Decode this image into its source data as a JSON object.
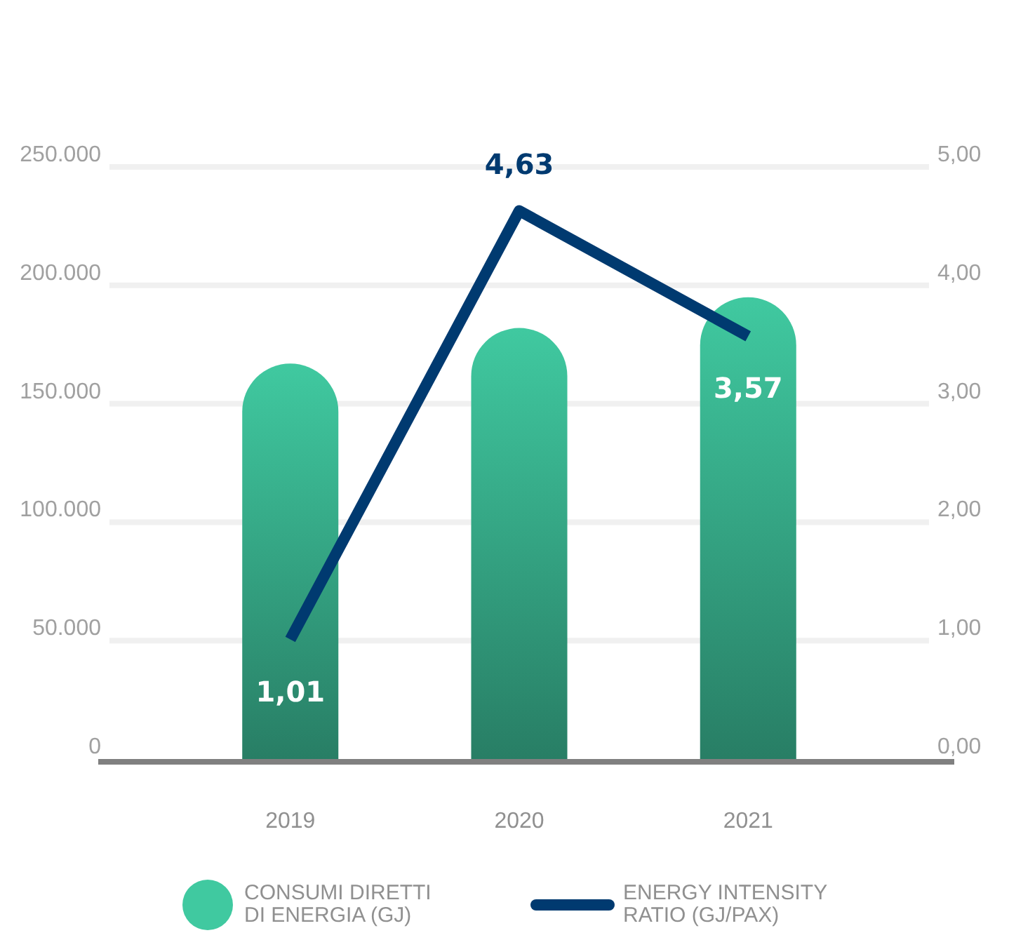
{
  "chart_data": {
    "type": "bar",
    "categories": [
      "2019",
      "2020",
      "2021"
    ],
    "series": [
      {
        "name": "CONSUMI DIRETTI DI ENERGIA (GJ)",
        "color": "#40c9a0",
        "values": [
          167000,
          182000,
          195000
        ]
      },
      {
        "name": "ENERGY INTENSITY RATIO (GJ/PAX)",
        "type": "line",
        "axis": "y2",
        "color": "#003a70",
        "values": [
          1.01,
          4.63,
          3.57
        ],
        "value_labels": [
          "1,01",
          "4,63",
          "3,57"
        ]
      }
    ],
    "ylim": [
      0,
      250000
    ],
    "yticks": [
      {
        "value": 0,
        "label": "0"
      },
      {
        "value": 50000,
        "label": "50.000"
      },
      {
        "value": 100000,
        "label": "100.000"
      },
      {
        "value": 150000,
        "label": "150.000"
      },
      {
        "value": 200000,
        "label": "200.000"
      },
      {
        "value": 250000,
        "label": "250.000"
      }
    ],
    "y2lim": [
      0,
      5
    ],
    "y2ticks": [
      {
        "value": 0,
        "label": "0,00"
      },
      {
        "value": 1,
        "label": "1,00"
      },
      {
        "value": 2,
        "label": "2,00"
      },
      {
        "value": 3,
        "label": "3,00"
      },
      {
        "value": 4,
        "label": "4,00"
      },
      {
        "value": 5,
        "label": "5,00"
      }
    ],
    "grid": "y",
    "legend": "bottom",
    "marker": "none"
  }
}
